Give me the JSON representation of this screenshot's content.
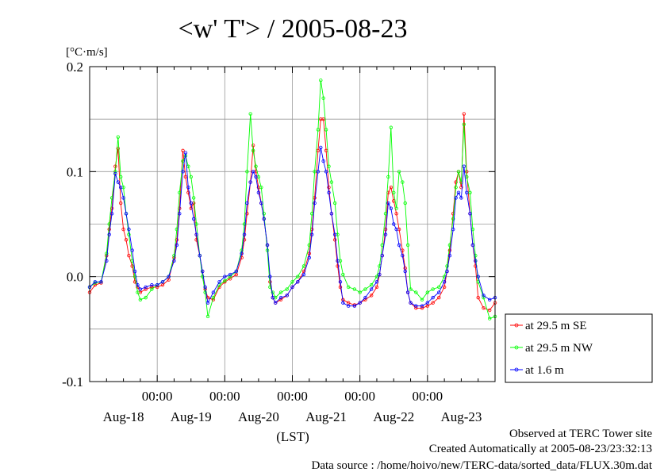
{
  "chart_data": {
    "type": "line",
    "title": "<w' T'> / 2005-08-23",
    "ylabel": "[°C·m/s]",
    "xlabel": "(LST)",
    "ylim": [
      -0.1,
      0.2
    ],
    "xlim": [
      0,
      6
    ],
    "yticks": [
      {
        "v": 0.2,
        "label": "0.2"
      },
      {
        "v": 0.1,
        "label": "0.1"
      },
      {
        "v": 0.0,
        "label": "0.0"
      },
      {
        "v": -0.1,
        "label": "-0.1"
      }
    ],
    "grid": true,
    "legend_position": "right",
    "x_ticks_time": [
      {
        "x": 1,
        "label": "00:00"
      },
      {
        "x": 2,
        "label": "00:00"
      },
      {
        "x": 3,
        "label": "00:00"
      },
      {
        "x": 4,
        "label": "00:00"
      },
      {
        "x": 5,
        "label": "00:00"
      }
    ],
    "x_ticks_date": [
      {
        "x": 0.5,
        "label": "Aug-18"
      },
      {
        "x": 1.5,
        "label": "Aug-19"
      },
      {
        "x": 2.5,
        "label": "Aug-20"
      },
      {
        "x": 3.5,
        "label": "Aug-21"
      },
      {
        "x": 4.5,
        "label": "Aug-22"
      },
      {
        "x": 5.5,
        "label": "Aug-23"
      }
    ],
    "series": [
      {
        "name": "at 29.5 m SE",
        "color": "#ff0000",
        "x": [
          0,
          0.08,
          0.17,
          0.25,
          0.29,
          0.33,
          0.38,
          0.42,
          0.46,
          0.5,
          0.54,
          0.58,
          0.63,
          0.67,
          0.71,
          0.75,
          0.83,
          0.92,
          1,
          1.08,
          1.17,
          1.25,
          1.29,
          1.33,
          1.38,
          1.42,
          1.46,
          1.5,
          1.54,
          1.58,
          1.63,
          1.67,
          1.71,
          1.75,
          1.83,
          1.92,
          2,
          2.08,
          2.17,
          2.25,
          2.29,
          2.33,
          2.38,
          2.42,
          2.46,
          2.5,
          2.54,
          2.58,
          2.63,
          2.67,
          2.71,
          2.75,
          2.83,
          2.92,
          3,
          3.08,
          3.17,
          3.25,
          3.29,
          3.33,
          3.38,
          3.42,
          3.46,
          3.5,
          3.54,
          3.58,
          3.63,
          3.67,
          3.71,
          3.75,
          3.83,
          3.92,
          4,
          4.08,
          4.17,
          4.25,
          4.29,
          4.33,
          4.38,
          4.42,
          4.46,
          4.5,
          4.54,
          4.58,
          4.63,
          4.67,
          4.71,
          4.75,
          4.83,
          4.92,
          5,
          5.08,
          5.17,
          5.25,
          5.29,
          5.33,
          5.38,
          5.42,
          5.46,
          5.5,
          5.54,
          5.58,
          5.63,
          5.67,
          5.71,
          5.75,
          5.83,
          5.92,
          6
        ],
        "y": [
          -0.015,
          -0.008,
          -0.006,
          0.02,
          0.045,
          0.065,
          0.105,
          0.122,
          0.07,
          0.045,
          0.035,
          0.02,
          0.01,
          -0.005,
          -0.01,
          -0.015,
          -0.012,
          -0.01,
          -0.01,
          -0.008,
          -0.003,
          0.018,
          0.035,
          0.065,
          0.12,
          0.095,
          0.08,
          0.065,
          0.07,
          0.035,
          0.02,
          0.005,
          -0.012,
          -0.02,
          -0.022,
          -0.01,
          -0.005,
          -0.002,
          0.002,
          0.018,
          0.035,
          0.06,
          0.09,
          0.125,
          0.1,
          0.085,
          0.07,
          0.055,
          0.03,
          -0.005,
          -0.02,
          -0.025,
          -0.022,
          -0.018,
          -0.01,
          -0.005,
          0.005,
          0.022,
          0.045,
          0.075,
          0.12,
          0.15,
          0.15,
          0.12,
          0.085,
          0.06,
          0.035,
          0.01,
          -0.01,
          -0.022,
          -0.025,
          -0.027,
          -0.025,
          -0.022,
          -0.018,
          -0.01,
          0.002,
          0.02,
          0.045,
          0.08,
          0.085,
          0.072,
          0.06,
          0.045,
          0.025,
          0.008,
          -0.015,
          -0.025,
          -0.03,
          -0.03,
          -0.028,
          -0.025,
          -0.02,
          -0.01,
          0.005,
          0.025,
          0.06,
          0.09,
          0.1,
          0.085,
          0.155,
          0.1,
          0.06,
          0.03,
          0.01,
          -0.02,
          -0.03,
          -0.032,
          -0.025
        ]
      },
      {
        "name": "at 29.5 m NW",
        "color": "#00ff00",
        "x": [
          0,
          0.08,
          0.17,
          0.25,
          0.29,
          0.33,
          0.38,
          0.42,
          0.46,
          0.5,
          0.54,
          0.58,
          0.63,
          0.67,
          0.71,
          0.75,
          0.83,
          0.92,
          1,
          1.08,
          1.17,
          1.25,
          1.29,
          1.33,
          1.38,
          1.42,
          1.46,
          1.5,
          1.54,
          1.58,
          1.63,
          1.67,
          1.71,
          1.75,
          1.83,
          1.92,
          2,
          2.08,
          2.17,
          2.25,
          2.29,
          2.33,
          2.38,
          2.42,
          2.46,
          2.5,
          2.54,
          2.58,
          2.63,
          2.67,
          2.71,
          2.75,
          2.83,
          2.92,
          3,
          3.08,
          3.17,
          3.25,
          3.29,
          3.33,
          3.38,
          3.42,
          3.46,
          3.5,
          3.54,
          3.58,
          3.63,
          3.67,
          3.71,
          3.75,
          3.83,
          3.92,
          4,
          4.08,
          4.17,
          4.25,
          4.29,
          4.33,
          4.38,
          4.42,
          4.46,
          4.5,
          4.54,
          4.58,
          4.63,
          4.67,
          4.71,
          4.75,
          4.83,
          4.92,
          5,
          5.08,
          5.17,
          5.25,
          5.29,
          5.33,
          5.38,
          5.42,
          5.46,
          5.5,
          5.54,
          5.58,
          5.63,
          5.67,
          5.71,
          5.75,
          5.83,
          5.92,
          6
        ],
        "y": [
          -0.01,
          -0.006,
          -0.005,
          0.022,
          0.05,
          0.075,
          0.1,
          0.133,
          0.095,
          0.085,
          0.06,
          0.04,
          0.015,
          0,
          -0.015,
          -0.022,
          -0.02,
          -0.012,
          -0.008,
          -0.005,
          0,
          0.02,
          0.045,
          0.08,
          0.11,
          0.115,
          0.105,
          0.095,
          0.075,
          0.05,
          0.02,
          0,
          -0.015,
          -0.038,
          -0.02,
          -0.008,
          -0.004,
          0,
          0.005,
          0.025,
          0.05,
          0.1,
          0.155,
          0.12,
          0.105,
          0.095,
          0.085,
          0.06,
          0.025,
          -0.01,
          -0.015,
          -0.02,
          -0.015,
          -0.012,
          -0.005,
          0,
          0.01,
          0.03,
          0.06,
          0.1,
          0.14,
          0.187,
          0.17,
          0.14,
          0.105,
          0.09,
          0.07,
          0.04,
          0.015,
          0.002,
          -0.01,
          -0.012,
          -0.015,
          -0.012,
          -0.008,
          0,
          0.01,
          0.03,
          0.06,
          0.095,
          0.142,
          0.08,
          0.065,
          0.1,
          0.09,
          0.07,
          0.03,
          -0.012,
          -0.015,
          -0.022,
          -0.015,
          -0.012,
          -0.01,
          0,
          0.01,
          0.03,
          0.055,
          0.085,
          0.1,
          0.09,
          0.145,
          0.095,
          0.08,
          0.045,
          0.02,
          -0.005,
          -0.02,
          -0.04,
          -0.038
        ]
      },
      {
        "name": "at 1.6 m",
        "color": "#0000ff",
        "x": [
          0,
          0.08,
          0.17,
          0.25,
          0.29,
          0.33,
          0.38,
          0.42,
          0.46,
          0.5,
          0.54,
          0.58,
          0.63,
          0.67,
          0.71,
          0.75,
          0.83,
          0.92,
          1,
          1.08,
          1.17,
          1.25,
          1.29,
          1.33,
          1.38,
          1.42,
          1.46,
          1.5,
          1.54,
          1.58,
          1.63,
          1.67,
          1.71,
          1.75,
          1.83,
          1.92,
          2,
          2.08,
          2.17,
          2.25,
          2.29,
          2.33,
          2.38,
          2.42,
          2.46,
          2.5,
          2.54,
          2.58,
          2.63,
          2.67,
          2.71,
          2.75,
          2.83,
          2.92,
          3,
          3.08,
          3.17,
          3.25,
          3.29,
          3.33,
          3.38,
          3.42,
          3.46,
          3.5,
          3.54,
          3.58,
          3.63,
          3.67,
          3.71,
          3.75,
          3.83,
          3.92,
          4,
          4.08,
          4.17,
          4.25,
          4.29,
          4.33,
          4.38,
          4.42,
          4.46,
          4.5,
          4.54,
          4.58,
          4.63,
          4.67,
          4.71,
          4.75,
          4.83,
          4.92,
          5,
          5.08,
          5.17,
          5.25,
          5.29,
          5.33,
          5.38,
          5.42,
          5.46,
          5.5,
          5.54,
          5.58,
          5.63,
          5.67,
          5.71,
          5.75,
          5.83,
          5.92,
          6
        ],
        "y": [
          -0.01,
          -0.005,
          -0.005,
          0.015,
          0.04,
          0.06,
          0.098,
          0.09,
          0.085,
          0.075,
          0.06,
          0.045,
          0.025,
          0.005,
          -0.008,
          -0.012,
          -0.01,
          -0.008,
          -0.008,
          -0.005,
          0,
          0.015,
          0.03,
          0.06,
          0.1,
          0.118,
          0.085,
          0.07,
          0.055,
          0.04,
          0.02,
          0.005,
          -0.01,
          -0.025,
          -0.015,
          -0.005,
          0,
          0.002,
          0.005,
          0.022,
          0.04,
          0.07,
          0.09,
          0.1,
          0.095,
          0.08,
          0.07,
          0.055,
          0.03,
          0,
          -0.02,
          -0.025,
          -0.02,
          -0.018,
          -0.01,
          -0.005,
          0.002,
          0.018,
          0.04,
          0.07,
          0.1,
          0.123,
          0.11,
          0.1,
          0.08,
          0.06,
          0.04,
          0.015,
          -0.005,
          -0.025,
          -0.028,
          -0.028,
          -0.025,
          -0.02,
          -0.012,
          -0.005,
          0.002,
          0.02,
          0.04,
          0.07,
          0.065,
          0.05,
          0.045,
          0.03,
          0.02,
          0.005,
          -0.015,
          -0.025,
          -0.028,
          -0.028,
          -0.025,
          -0.02,
          -0.015,
          -0.005,
          0.005,
          0.02,
          0.045,
          0.075,
          0.08,
          0.075,
          0.105,
          0.08,
          0.06,
          0.03,
          0.015,
          0,
          -0.018,
          -0.022,
          -0.02
        ]
      }
    ]
  },
  "footer": {
    "line1": "Observed at TERC Tower site",
    "line2": "Created Automatically at 2005-08-23/23:32:13",
    "line3": "Data source : /home/hoivo/new/TERC-data/sorted_data/FLUX.30m.dat"
  }
}
